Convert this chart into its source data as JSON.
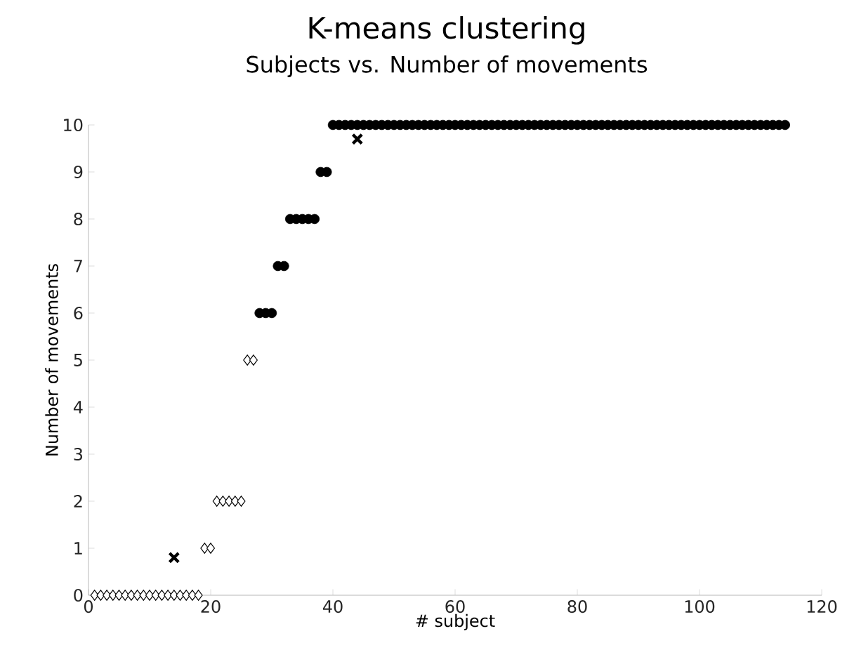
{
  "chart_data": {
    "type": "scatter",
    "title": "K-means clustering",
    "subtitle": "Subjects vs. Number of movements",
    "xlabel": "# subject",
    "ylabel": "Number of movements",
    "xlim": [
      0,
      120
    ],
    "ylim": [
      0,
      10
    ],
    "xticks": [
      0,
      20,
      40,
      60,
      80,
      100,
      120
    ],
    "yticks": [
      0,
      1,
      2,
      3,
      4,
      5,
      6,
      7,
      8,
      9,
      10
    ],
    "grid": false,
    "series": [
      {
        "color": "#000000",
        "marker": "diamond",
        "x": [
          1,
          2,
          3,
          4,
          5,
          6,
          7,
          8,
          9,
          10,
          11,
          12,
          13,
          14,
          15,
          16,
          17,
          18,
          19,
          20,
          21,
          22,
          23,
          24,
          25,
          26,
          27
        ],
        "values": [
          0,
          0,
          0,
          0,
          0,
          0,
          0,
          0,
          0,
          0,
          0,
          0,
          0,
          0,
          0,
          0,
          0,
          0,
          1,
          1,
          2,
          2,
          2,
          2,
          2,
          5,
          5
        ]
      },
      {
        "color": "#000000",
        "marker": "circle",
        "x": [
          28,
          29,
          30,
          31,
          32,
          33,
          34,
          35,
          36,
          37,
          38,
          39,
          40,
          41,
          42,
          43,
          44,
          45,
          46,
          47,
          48,
          49,
          50,
          51,
          52,
          53,
          54,
          55,
          56,
          57,
          58,
          59,
          60,
          61,
          62,
          63,
          64,
          65,
          66,
          67,
          68,
          69,
          70,
          71,
          72,
          73,
          74,
          75,
          76,
          77,
          78,
          79,
          80,
          81,
          82,
          83,
          84,
          85,
          86,
          87,
          88,
          89,
          90,
          91,
          92,
          93,
          94,
          95,
          96,
          97,
          98,
          99,
          100,
          101,
          102,
          103,
          104,
          105,
          106,
          107,
          108,
          109,
          110,
          111,
          112,
          113,
          114
        ],
        "values": [
          6,
          6,
          6,
          7,
          7,
          8,
          8,
          8,
          8,
          8,
          9,
          9,
          10,
          10,
          10,
          10,
          10,
          10,
          10,
          10,
          10,
          10,
          10,
          10,
          10,
          10,
          10,
          10,
          10,
          10,
          10,
          10,
          10,
          10,
          10,
          10,
          10,
          10,
          10,
          10,
          10,
          10,
          10,
          10,
          10,
          10,
          10,
          10,
          10,
          10,
          10,
          10,
          10,
          10,
          10,
          10,
          10,
          10,
          10,
          10,
          10,
          10,
          10,
          10,
          10,
          10,
          10,
          10,
          10,
          10,
          10,
          10,
          10,
          10,
          10,
          10,
          10,
          10,
          10,
          10,
          10,
          10,
          10,
          10,
          10,
          10,
          10
        ]
      },
      {
        "color": "#000000",
        "marker": "cross",
        "x": [
          14,
          44
        ],
        "values": [
          0.8,
          9.7
        ]
      }
    ]
  }
}
